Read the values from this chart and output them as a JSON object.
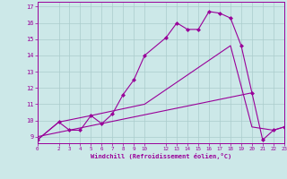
{
  "bg_color": "#cce8e8",
  "line_color": "#990099",
  "grid_color": "#aacccc",
  "xlim": [
    0,
    23
  ],
  "ylim": [
    8.6,
    17.3
  ],
  "xticks": [
    0,
    2,
    3,
    4,
    5,
    6,
    7,
    8,
    9,
    10,
    12,
    13,
    14,
    15,
    16,
    17,
    18,
    19,
    20,
    21,
    22,
    23
  ],
  "yticks": [
    9,
    10,
    11,
    12,
    13,
    14,
    15,
    16,
    17
  ],
  "line1_x": [
    0,
    2,
    3,
    4,
    5,
    6,
    7,
    8,
    9,
    10,
    12,
    13,
    14,
    15,
    16,
    17,
    18,
    19,
    20,
    21,
    22,
    23
  ],
  "line1_y": [
    8.8,
    9.9,
    9.4,
    9.4,
    10.3,
    9.8,
    10.4,
    11.6,
    12.5,
    14.0,
    15.1,
    16.0,
    15.6,
    15.6,
    16.7,
    16.6,
    16.3,
    14.6,
    11.7,
    8.8,
    9.4,
    9.6
  ],
  "line2_x": [
    0,
    2,
    5,
    10,
    18,
    20,
    22,
    23
  ],
  "line2_y": [
    8.8,
    9.9,
    10.3,
    11.0,
    14.6,
    9.6,
    9.4,
    9.6
  ],
  "line3_x": [
    0,
    20
  ],
  "line3_y": [
    9.0,
    11.7
  ],
  "xlabel": "Windchill (Refroidissement éolien,°C)"
}
